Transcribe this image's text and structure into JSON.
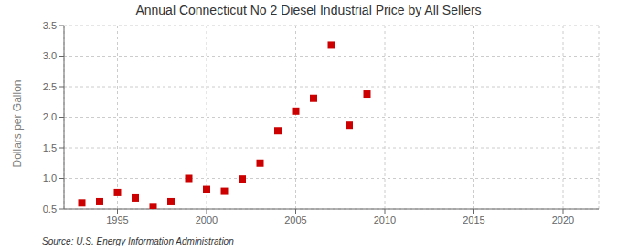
{
  "chart_data": {
    "type": "scatter",
    "title": "Annual Connecticut No 2 Diesel Industrial Price by All Sellers",
    "ylabel": "Dollars per Gallon",
    "annotation": "Source: U.S. Energy Information Administration",
    "x": [
      1993,
      1994,
      1995,
      1996,
      1997,
      1998,
      1999,
      2000,
      2001,
      2002,
      2003,
      2004,
      2005,
      2006,
      2007,
      2008,
      2009
    ],
    "values": [
      0.6,
      0.62,
      0.77,
      0.68,
      0.54,
      0.62,
      1.0,
      0.82,
      0.79,
      0.99,
      1.25,
      1.78,
      2.1,
      2.31,
      3.18,
      1.87,
      2.38
    ],
    "color": "#cc0000",
    "marker": "square",
    "xlim": [
      1992,
      2022
    ],
    "ylim": [
      0.5,
      3.5
    ],
    "xticks": [
      1995,
      2000,
      2005,
      2010,
      2015,
      2020
    ],
    "yticks": [
      0.5,
      {
        "value": 1,
        "label": "1.0"
      },
      1.5,
      {
        "value": 2,
        "label": "2.0"
      },
      2.5,
      {
        "value": 3,
        "label": "3.0"
      },
      3.5
    ],
    "grid": true
  }
}
